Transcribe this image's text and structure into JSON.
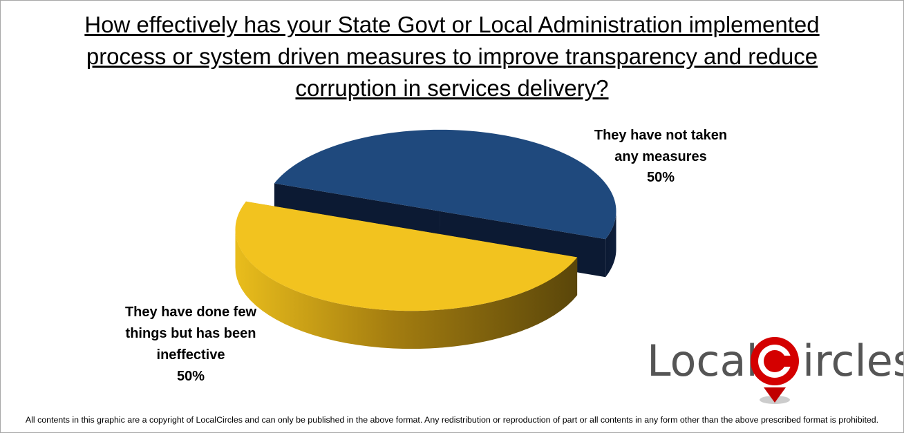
{
  "chart_data": {
    "type": "pie",
    "title": "How effectively has your State Govt or Local Administration implemented process or system driven measures to improve transparency and reduce corruption in services delivery?",
    "categories": [
      "They have not taken any measures",
      "They have done few things but has been ineffective"
    ],
    "values": [
      50,
      50
    ],
    "value_labels": [
      "50%",
      "50%"
    ],
    "colors": [
      "#1f497d",
      "#f2c31f"
    ],
    "logo": [
      "Local",
      "ircles"
    ],
    "footer": "All contents in this graphic are a copyright of LocalCircles and can only be published in the above format. Any redistribution or reproduction of part or all contents in any form other than the above prescribed format is prohibited."
  }
}
